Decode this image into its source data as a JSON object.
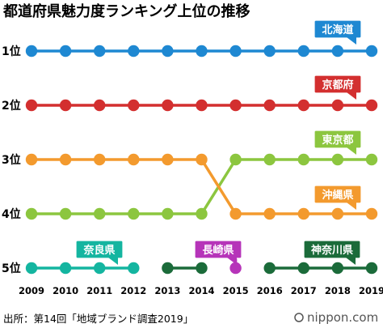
{
  "title": "都道府県魅力度ランキング上位の推移",
  "source": "出所：第14回「地域ブランド調査2019」",
  "brand": "nippon.com",
  "chart_data": {
    "type": "line",
    "x": [
      "2009",
      "2010",
      "2011",
      "2012",
      "2013",
      "2014",
      "2015",
      "2016",
      "2017",
      "2018",
      "2019"
    ],
    "ylabels": [
      "1位",
      "2位",
      "3位",
      "4位",
      "5位"
    ],
    "ylim": [
      1,
      5
    ],
    "y_inverted": true,
    "grid": false,
    "series": [
      {
        "name": "北海道",
        "color": "#1e88d2",
        "values": [
          1,
          1,
          1,
          1,
          1,
          1,
          1,
          1,
          1,
          1,
          1
        ]
      },
      {
        "name": "京都府",
        "color": "#d32f2f",
        "values": [
          2,
          2,
          2,
          2,
          2,
          2,
          2,
          2,
          2,
          2,
          2
        ]
      },
      {
        "name": "東京都",
        "color": "#8cc63f",
        "values": [
          4,
          4,
          4,
          4,
          4,
          4,
          3,
          3,
          3,
          3,
          3
        ]
      },
      {
        "name": "沖縄県",
        "color": "#f39a2e",
        "values": [
          3,
          3,
          3,
          3,
          3,
          3,
          4,
          4,
          4,
          4,
          4
        ]
      },
      {
        "name": "奈良県",
        "color": "#14b5a0",
        "values": [
          5,
          5,
          5,
          5,
          null,
          null,
          null,
          null,
          null,
          null,
          null
        ]
      },
      {
        "name": "長崎県",
        "color": "#b634b9",
        "values": [
          null,
          null,
          null,
          null,
          null,
          null,
          5,
          null,
          null,
          null,
          null
        ],
        "open_end": true
      },
      {
        "name": "神奈川県",
        "color": "#1b6b3a",
        "values": [
          null,
          null,
          null,
          null,
          5,
          5,
          null,
          5,
          5,
          5,
          5
        ],
        "segments": [
          [
            4,
            5
          ],
          [
            7,
            10
          ]
        ]
      }
    ],
    "labels": [
      "北海道",
      "京都府",
      "東京都",
      "沖縄県",
      "奈良県",
      "長崎県",
      "神奈川県"
    ]
  }
}
